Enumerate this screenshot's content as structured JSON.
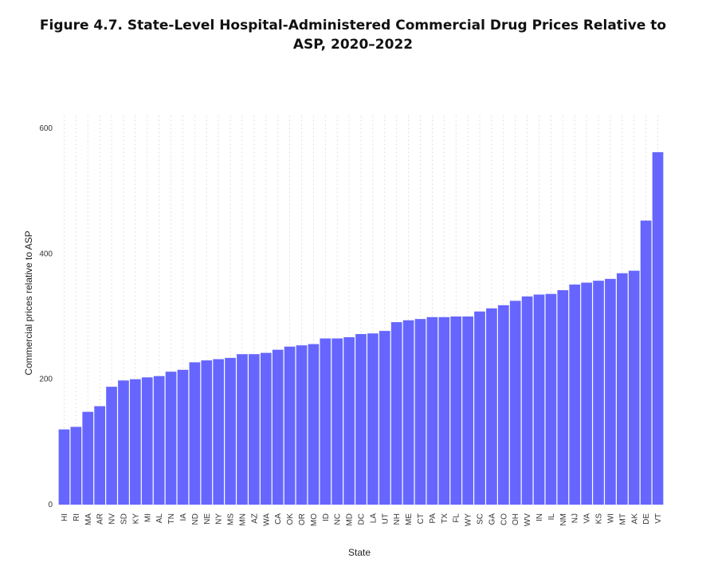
{
  "chart_data": {
    "type": "bar",
    "title": "Figure 4.7. State-Level Hospital-Administered Commercial Drug Prices Relative to ASP, 2020–2022",
    "xlabel": "State",
    "ylabel": "Commercial prices relative to ASP",
    "ylim": [
      0,
      620
    ],
    "yticks": [
      0,
      200,
      400,
      600
    ],
    "grid": true,
    "legend": "none",
    "bar_color": "#6666ff",
    "categories": [
      "HI",
      "RI",
      "MA",
      "AR",
      "NV",
      "SD",
      "KY",
      "MI",
      "AL",
      "TN",
      "IA",
      "ND",
      "NE",
      "NY",
      "MS",
      "MN",
      "AZ",
      "WA",
      "CA",
      "OK",
      "OR",
      "MO",
      "ID",
      "NC",
      "MD",
      "DC",
      "LA",
      "UT",
      "NH",
      "ME",
      "CT",
      "PA",
      "TX",
      "FL",
      "WY",
      "SC",
      "GA",
      "CO",
      "OH",
      "WV",
      "IN",
      "IL",
      "NM",
      "NJ",
      "VA",
      "KS",
      "WI",
      "MT",
      "AK",
      "DE",
      "VT"
    ],
    "values": [
      120,
      124,
      148,
      157,
      188,
      198,
      200,
      203,
      205,
      212,
      215,
      227,
      230,
      232,
      234,
      240,
      240,
      242,
      247,
      252,
      254,
      256,
      265,
      265,
      267,
      272,
      273,
      277,
      291,
      294,
      296,
      299,
      299,
      300,
      300,
      308,
      313,
      318,
      325,
      332,
      335,
      336,
      342,
      351,
      354,
      357,
      360,
      369,
      373,
      453,
      562
    ]
  }
}
